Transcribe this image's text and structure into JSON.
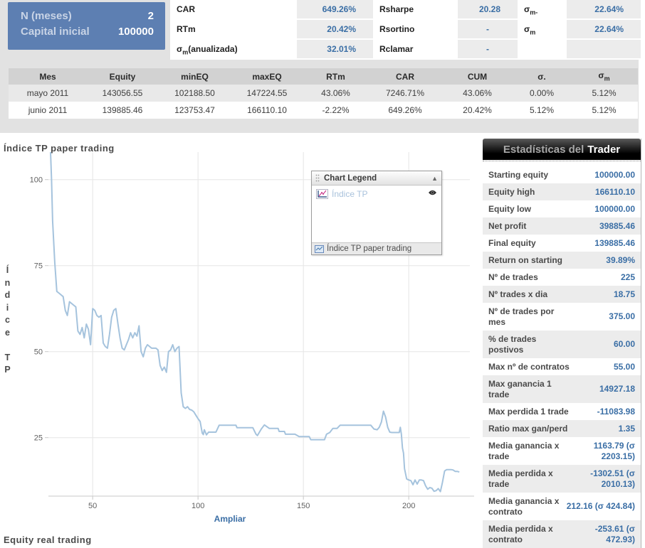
{
  "colors": {
    "summary_box_bg": "#5d7fb2",
    "value_blue": "#3a6ea5",
    "chart_line": "#a5c3dd",
    "legend_series_label": "#a9c2dc",
    "top_band_bg": "#e2e2e2",
    "panel_title_bg": "#000000"
  },
  "summary_box": {
    "rows": [
      {
        "label": "N (meses)",
        "value": "2"
      },
      {
        "label": "Capital inicial",
        "value": "100000"
      }
    ]
  },
  "top_stats": {
    "g1": {
      "r1": {
        "label": "CAR",
        "value": "649.26%"
      },
      "r2": {
        "label": "RTm",
        "value": "20.42%"
      },
      "r3": {
        "base": "σ",
        "sub": "m",
        "post": "(anualizada)",
        "value": "32.01%"
      }
    },
    "g2": {
      "r1": {
        "label": "Rsharpe",
        "value": "20.28"
      },
      "r2": {
        "label": "Rsortino",
        "value": "-"
      },
      "r3": {
        "label": "Rclamar",
        "value": "-"
      }
    },
    "g3": {
      "r1": {
        "base": "σ",
        "sub": "m-",
        "value": "22.64%"
      },
      "r2": {
        "base": "σ",
        "sub": "m",
        "value": "22.64%"
      }
    }
  },
  "monthly_table": {
    "headers": [
      {
        "text": "Mes"
      },
      {
        "text": "Equity"
      },
      {
        "text": "minEQ"
      },
      {
        "text": "maxEQ"
      },
      {
        "text": "RTm"
      },
      {
        "text": "CAR"
      },
      {
        "text": "CUM"
      },
      {
        "text": "σ."
      },
      {
        "base": "σ",
        "sub": "m"
      }
    ],
    "rows": [
      {
        "cells": [
          "mayo 2011",
          "143056.55",
          "102188.50",
          "147224.55",
          "43.06%",
          "7246.71%",
          "43.06%",
          "0.00%",
          "5.12%"
        ]
      },
      {
        "cells": [
          "junio 2011",
          "139885.46",
          "123753.47",
          "166110.10",
          "-2.22%",
          "649.26%",
          "20.42%",
          "5.12%",
          "5.12%"
        ]
      }
    ]
  },
  "chart_data": {
    "type": "line",
    "title": "Índice TP paper trading",
    "ylabel": "Índice TP",
    "xlabel": "",
    "zoom_link": "Ampliar",
    "xlim": [
      29,
      229
    ],
    "ylim": [
      8,
      108
    ],
    "x_ticks": [
      50,
      100,
      150,
      200
    ],
    "y_ticks": [
      25,
      50,
      75,
      100
    ],
    "grid": true,
    "legend": {
      "title": "Chart Legend",
      "entries": [
        "Índice TP"
      ],
      "footer": "Índice TP paper trading"
    },
    "series": [
      {
        "name": "Índice TP",
        "color": "#a5c3dd",
        "points": [
          [
            30,
            108
          ],
          [
            30.5,
            100
          ],
          [
            31,
            88
          ],
          [
            32,
            76
          ],
          [
            33,
            67.5
          ],
          [
            34,
            67
          ],
          [
            35,
            66.5
          ],
          [
            36,
            66
          ],
          [
            37,
            62
          ],
          [
            38,
            60.5
          ],
          [
            39,
            64.5
          ],
          [
            40,
            64
          ],
          [
            41,
            63.5
          ],
          [
            42,
            63
          ],
          [
            43,
            56
          ],
          [
            44,
            55
          ],
          [
            45,
            57
          ],
          [
            46,
            54
          ],
          [
            47,
            58
          ],
          [
            48,
            56.5
          ],
          [
            49,
            52
          ],
          [
            50,
            62.5
          ],
          [
            51,
            62
          ],
          [
            52,
            60.5
          ],
          [
            53,
            60
          ],
          [
            54,
            60.5
          ],
          [
            55,
            52.5
          ],
          [
            56,
            51.5
          ],
          [
            57,
            51
          ],
          [
            58,
            55
          ],
          [
            59,
            60
          ],
          [
            60,
            62
          ],
          [
            61,
            62.5
          ],
          [
            62,
            58
          ],
          [
            63,
            54
          ],
          [
            64,
            51
          ],
          [
            65,
            50.5
          ],
          [
            66,
            52
          ],
          [
            67,
            53.5
          ],
          [
            68,
            55.5
          ],
          [
            69,
            54
          ],
          [
            70,
            55.5
          ],
          [
            71,
            54.5
          ],
          [
            72,
            57.5
          ],
          [
            73,
            50
          ],
          [
            74,
            48.5
          ],
          [
            75,
            51
          ],
          [
            76,
            52
          ],
          [
            77,
            51.5
          ],
          [
            78,
            51
          ],
          [
            79,
            51
          ],
          [
            80,
            51
          ],
          [
            81,
            50.5
          ],
          [
            82,
            46
          ],
          [
            83,
            44.5
          ],
          [
            84,
            45.5
          ],
          [
            85,
            44
          ],
          [
            86,
            50
          ],
          [
            87,
            50.5
          ],
          [
            88,
            52
          ],
          [
            89,
            50
          ],
          [
            90,
            51
          ],
          [
            91,
            51.5
          ],
          [
            92,
            38
          ],
          [
            93,
            34
          ],
          [
            94,
            33.5
          ],
          [
            95,
            34
          ],
          [
            96,
            33.2
          ],
          [
            97,
            33
          ],
          [
            98,
            32.5
          ],
          [
            99,
            31.5
          ],
          [
            100,
            30.5
          ],
          [
            101,
            29.7
          ],
          [
            102,
            26.3
          ],
          [
            102.5,
            25.9
          ],
          [
            103,
            27.3
          ],
          [
            104,
            25.8
          ],
          [
            105,
            26.6
          ],
          [
            107,
            26.6
          ],
          [
            108.5,
            26.6
          ],
          [
            110,
            28.6
          ],
          [
            113,
            28.6
          ],
          [
            116,
            28.6
          ],
          [
            118,
            28.6
          ],
          [
            118.5,
            27.9
          ],
          [
            121,
            27.9
          ],
          [
            124,
            27.9
          ],
          [
            126,
            27.9
          ],
          [
            127.5,
            26
          ],
          [
            128.2,
            25.6
          ],
          [
            130,
            27.5
          ],
          [
            131.5,
            28.7
          ],
          [
            133.8,
            27.7
          ],
          [
            136,
            27.7
          ],
          [
            138,
            27.7
          ],
          [
            138.5,
            26.8
          ],
          [
            141,
            26.8
          ],
          [
            141.5,
            26
          ],
          [
            144,
            26
          ],
          [
            146,
            26
          ],
          [
            148,
            25.3
          ],
          [
            150,
            25.3
          ],
          [
            152.8,
            25.3
          ],
          [
            153.5,
            24.4
          ],
          [
            156,
            24.4
          ],
          [
            158,
            24.4
          ],
          [
            160,
            24.4
          ],
          [
            161,
            26
          ],
          [
            162.5,
            26.5
          ],
          [
            164,
            27.7
          ],
          [
            166,
            27.7
          ],
          [
            167.4,
            28.6
          ],
          [
            170,
            28.6
          ],
          [
            173,
            28.6
          ],
          [
            176,
            28.6
          ],
          [
            179,
            28.6
          ],
          [
            182,
            28.6
          ],
          [
            183.5,
            27.5
          ],
          [
            185,
            27.3
          ],
          [
            186,
            28
          ],
          [
            187,
            29.5
          ],
          [
            188,
            32.7
          ],
          [
            189,
            31
          ],
          [
            190,
            28
          ],
          [
            191,
            26.6
          ],
          [
            192,
            26.5
          ],
          [
            194,
            26.5
          ],
          [
            195.5,
            26.5
          ],
          [
            196,
            28
          ],
          [
            196.5,
            26
          ],
          [
            197,
            22
          ],
          [
            197.5,
            20.5
          ],
          [
            198,
            16
          ],
          [
            199,
            13
          ],
          [
            200,
            12.7
          ],
          [
            201,
            12.5
          ],
          [
            202,
            11.3
          ],
          [
            203,
            12.7
          ],
          [
            204,
            11.5
          ],
          [
            205,
            12.7
          ],
          [
            206,
            12.7
          ],
          [
            207,
            12.5
          ],
          [
            208,
            11
          ],
          [
            209,
            10
          ],
          [
            210,
            10.5
          ],
          [
            211,
            10.3
          ],
          [
            212,
            9.4
          ],
          [
            213,
            9.6
          ],
          [
            214,
            10.2
          ],
          [
            215,
            9.3
          ],
          [
            216,
            12
          ],
          [
            217,
            15.3
          ],
          [
            218,
            15.7
          ],
          [
            219,
            15.7
          ],
          [
            220,
            15.7
          ],
          [
            221,
            15.6
          ],
          [
            222,
            15.2
          ],
          [
            223,
            15.2
          ],
          [
            224,
            15
          ]
        ]
      }
    ]
  },
  "trader_panel": {
    "title_prefix": "Estadísticas del",
    "title_emphasis": "Trader",
    "rows": [
      {
        "label": "Starting equity",
        "value": "100000.00"
      },
      {
        "label": "Equity high",
        "value": "166110.10"
      },
      {
        "label": "Equity low",
        "value": "100000.00"
      },
      {
        "label": "Net profit",
        "value": "39885.46"
      },
      {
        "label": "Final equity",
        "value": "139885.46"
      },
      {
        "label": "Return on starting",
        "value": "39.89%"
      },
      {
        "label": "Nº de trades",
        "value": "225"
      },
      {
        "label": "Nº trades x dia",
        "value": "18.75"
      },
      {
        "label": "Nº de trades por\nmes",
        "value": "375.00"
      },
      {
        "label": "% de trades\npostivos",
        "value": "60.00"
      },
      {
        "label": "Max nº de contratos",
        "value": "55.00"
      },
      {
        "label": "Max ganancia 1\ntrade",
        "value": "14927.18"
      },
      {
        "label": "Max perdida 1 trade",
        "value": "-11083.98"
      },
      {
        "label": "Ratio max gan/perd",
        "value": "1.35"
      },
      {
        "label": "Media ganancia x\ntrade",
        "value": "1163.79 (σ\n2203.15)"
      },
      {
        "label": "Media perdida x\ntrade",
        "value": "-1302.51 (σ\n2010.13)"
      },
      {
        "label": "Media ganancia x\ncontrato",
        "value": "212.16 (σ 424.84)"
      },
      {
        "label": "Media perdida x\ncontrato",
        "value": "-253.61 (σ\n472.93)"
      }
    ]
  },
  "bottom_heading": "Equity real trading"
}
